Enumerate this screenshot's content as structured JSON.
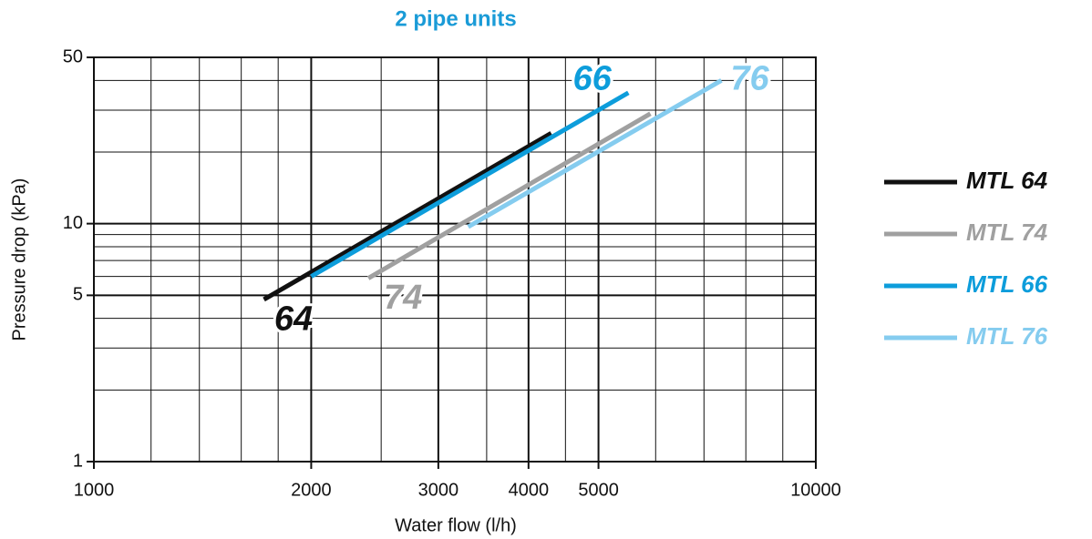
{
  "chart_data": {
    "type": "line",
    "title": "2 pipe units",
    "xlabel": "Water flow (l/h)",
    "ylabel": "Pressure drop (kPa)",
    "xscale": "log",
    "yscale": "log",
    "xlim": [
      1000,
      10000
    ],
    "ylim": [
      1,
      50
    ],
    "xticks": [
      1000,
      2000,
      3000,
      4000,
      5000,
      10000
    ],
    "yticks": [
      1,
      5,
      10,
      50
    ],
    "xminor": [
      1200,
      1400,
      1600,
      1800,
      2500,
      3500,
      4500,
      6000,
      7000,
      8000,
      9000
    ],
    "yminor": [
      2,
      3,
      4,
      6,
      7,
      8,
      9,
      20,
      30,
      40
    ],
    "grid": true,
    "legend": "right",
    "series": [
      {
        "name": "MTL 64",
        "color": "#111111",
        "x": [
          1720,
          4300
        ],
        "values": [
          4.8,
          24
        ]
      },
      {
        "name": "MTL 74",
        "color": "#a0a0a0",
        "x": [
          2400,
          5900
        ],
        "values": [
          5.9,
          29
        ]
      },
      {
        "name": "MTL 66",
        "color": "#0d9ddb",
        "x": [
          2000,
          5500
        ],
        "values": [
          6.0,
          35.5
        ]
      },
      {
        "name": "MTL 76",
        "color": "#85ccef",
        "x": [
          3300,
          7400
        ],
        "values": [
          9.7,
          40
        ]
      }
    ],
    "annotations": [
      {
        "text": "64",
        "x": 1890,
        "y": 3.9,
        "color": "#111111"
      },
      {
        "text": "74",
        "x": 2680,
        "y": 4.8,
        "color": "#a0a0a0"
      },
      {
        "text": "66",
        "x": 4900,
        "y": 40,
        "color": "#0d9ddb"
      },
      {
        "text": "76",
        "x": 8100,
        "y": 40,
        "color": "#85ccef"
      }
    ]
  }
}
